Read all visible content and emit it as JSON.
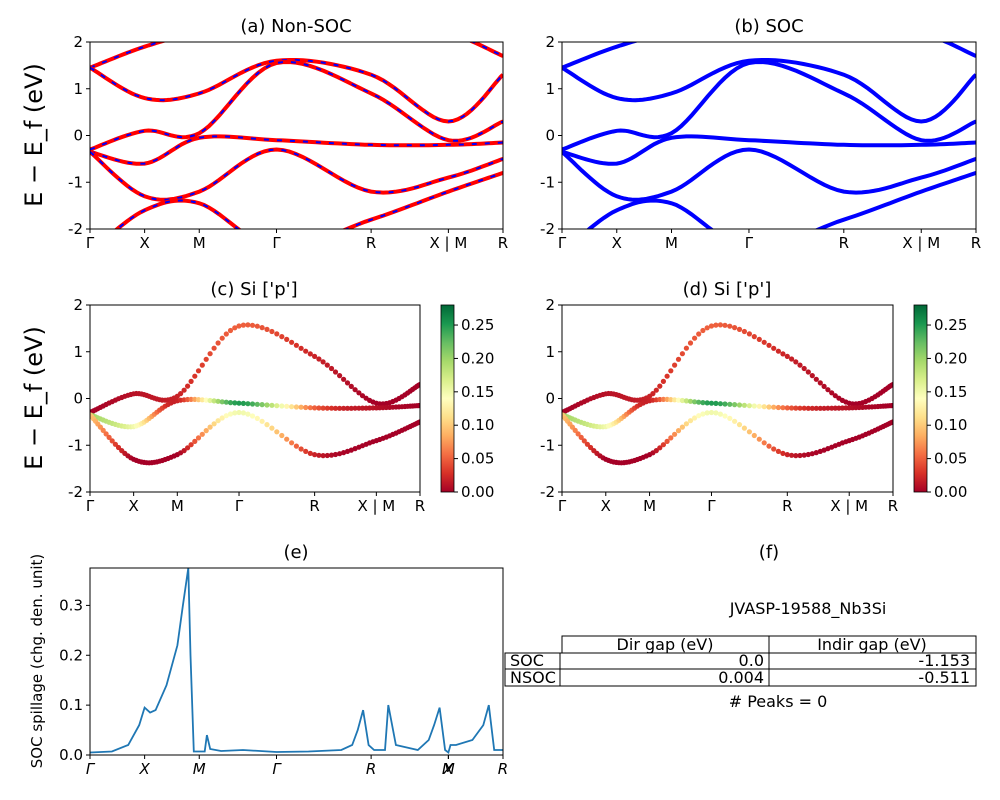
{
  "chart_data": [
    {
      "id": "a",
      "type": "line",
      "title": "(a) Non-SOC",
      "ylabel": "E − E_f (eV)",
      "ylim": [
        -2,
        2
      ],
      "yticks": [
        -2,
        -1,
        0,
        1,
        2
      ],
      "kpoint_labels": [
        "Γ",
        "X",
        "M",
        "Γ",
        "R",
        "X | M",
        "R"
      ],
      "kpoint_positions": [
        0,
        0.5,
        1.0,
        1.7071,
        2.5731,
        3.2802,
        3.7802
      ],
      "series_colors": [
        "#ff0000",
        "#0000ff"
      ],
      "bands": [
        {
          "x": [
            0,
            0.5,
            1.0,
            1.7071,
            2.5731,
            3.2802,
            3.7802
          ],
          "y": [
            1.45,
            1.9,
            2.2,
            2.4,
            2.5,
            2.2,
            1.7
          ]
        },
        {
          "x": [
            0,
            0.5,
            1.0,
            1.7071,
            2.5731,
            3.2802,
            3.7802
          ],
          "y": [
            1.45,
            0.8,
            0.9,
            1.6,
            1.3,
            0.3,
            1.3
          ]
        },
        {
          "x": [
            0,
            0.5,
            1.0,
            1.7071,
            2.5731,
            3.2802,
            3.7802
          ],
          "y": [
            -0.3,
            0.1,
            0.05,
            1.55,
            0.9,
            -0.1,
            0.3
          ]
        },
        {
          "x": [
            0,
            0.5,
            1.0,
            1.7071,
            2.5731,
            3.2802,
            3.7802
          ],
          "y": [
            -0.35,
            -0.6,
            -0.05,
            -0.1,
            -0.2,
            -0.2,
            -0.15
          ]
        },
        {
          "x": [
            0,
            0.5,
            1.0,
            1.7071,
            2.5731,
            3.2802,
            3.7802
          ],
          "y": [
            -0.35,
            -1.3,
            -1.2,
            -0.3,
            -1.2,
            -0.9,
            -0.5
          ]
        },
        {
          "x": [
            0,
            0.5,
            1.0,
            1.7071,
            2.5731,
            3.2802,
            3.7802
          ],
          "y": [
            -2.5,
            -1.6,
            -1.45,
            -2.4,
            -1.8,
            -1.2,
            -0.8
          ]
        }
      ]
    },
    {
      "id": "b",
      "type": "line",
      "title": "(b) SOC",
      "ylim": [
        -2,
        2
      ],
      "yticks": [
        -2,
        -1,
        0,
        1,
        2
      ],
      "kpoint_labels": [
        "Γ",
        "X",
        "M",
        "Γ",
        "R",
        "X | M",
        "R"
      ],
      "kpoint_positions": [
        0,
        0.5,
        1.0,
        1.7071,
        2.5731,
        3.2802,
        3.7802
      ],
      "series_colors": [
        "#0000ff"
      ],
      "bands": [
        {
          "x": [
            0,
            0.5,
            1.0,
            1.7071,
            2.5731,
            3.2802,
            3.7802
          ],
          "y": [
            1.45,
            1.9,
            2.2,
            2.4,
            2.5,
            2.2,
            1.7
          ]
        },
        {
          "x": [
            0,
            0.5,
            1.0,
            1.7071,
            2.5731,
            3.2802,
            3.7802
          ],
          "y": [
            1.45,
            0.8,
            0.9,
            1.6,
            1.3,
            0.3,
            1.3
          ]
        },
        {
          "x": [
            0,
            0.5,
            1.0,
            1.7071,
            2.5731,
            3.2802,
            3.7802
          ],
          "y": [
            -0.3,
            0.1,
            0.05,
            1.55,
            0.9,
            -0.1,
            0.3
          ]
        },
        {
          "x": [
            0,
            0.5,
            1.0,
            1.7071,
            2.5731,
            3.2802,
            3.7802
          ],
          "y": [
            -0.35,
            -0.6,
            -0.05,
            -0.1,
            -0.2,
            -0.2,
            -0.15
          ]
        },
        {
          "x": [
            0,
            0.5,
            1.0,
            1.7071,
            2.5731,
            3.2802,
            3.7802
          ],
          "y": [
            -0.35,
            -1.3,
            -1.2,
            -0.3,
            -1.2,
            -0.9,
            -0.5
          ]
        },
        {
          "x": [
            0,
            0.5,
            1.0,
            1.7071,
            2.5731,
            3.2802,
            3.7802
          ],
          "y": [
            -2.5,
            -1.6,
            -1.45,
            -2.4,
            -1.8,
            -1.2,
            -0.8
          ]
        }
      ]
    },
    {
      "id": "c",
      "type": "scatter",
      "title": "(c)  Si ['p']",
      "ylabel": "E − E_f (eV)",
      "ylim": [
        -2,
        2
      ],
      "yticks": [
        -2,
        -1,
        0,
        1,
        2
      ],
      "kpoint_labels": [
        "Γ",
        "X",
        "M",
        "Γ",
        "R",
        "X | M",
        "R"
      ],
      "kpoint_positions": [
        0,
        0.5,
        1.0,
        1.7071,
        2.5731,
        3.2802,
        3.7802
      ],
      "colorbar": {
        "min": 0.0,
        "max": 0.28,
        "ticks": [
          0.0,
          0.05,
          0.1,
          0.15,
          0.2,
          0.25
        ],
        "tick_labels": [
          "0.00",
          "0.05",
          "0.10",
          "0.15",
          "0.20",
          "0.25"
        ],
        "colormap": "RdYlGn"
      },
      "weighted_bands": [
        {
          "x": [
            0,
            0.5,
            1.0,
            1.7071,
            2.5731,
            3.2802,
            3.7802
          ],
          "y": [
            -0.3,
            0.1,
            0.05,
            1.55,
            0.9,
            -0.1,
            0.3
          ],
          "w": [
            0.0,
            0.01,
            0.02,
            0.05,
            0.02,
            0.0,
            0.0
          ]
        },
        {
          "x": [
            0,
            0.5,
            1.0,
            1.7071,
            2.5731,
            3.2802,
            3.7802
          ],
          "y": [
            -0.35,
            -0.6,
            -0.05,
            -0.1,
            -0.2,
            -0.2,
            -0.15
          ],
          "w": [
            0.2,
            0.15,
            0.02,
            0.25,
            0.05,
            0.01,
            0.0
          ]
        },
        {
          "x": [
            0,
            0.5,
            1.0,
            1.7071,
            2.5731,
            3.2802,
            3.7802
          ],
          "y": [
            -0.35,
            -1.3,
            -1.2,
            -0.3,
            -1.2,
            -0.9,
            -0.5
          ],
          "w": [
            0.1,
            0.0,
            0.0,
            0.15,
            0.02,
            0.0,
            0.0
          ]
        }
      ]
    },
    {
      "id": "d",
      "type": "scatter",
      "title": "(d) Si ['p']",
      "ylim": [
        -2,
        2
      ],
      "yticks": [
        -2,
        -1,
        0,
        1,
        2
      ],
      "kpoint_labels": [
        "Γ",
        "X",
        "M",
        "Γ",
        "R",
        "X | M",
        "R"
      ],
      "kpoint_positions": [
        0,
        0.5,
        1.0,
        1.7071,
        2.5731,
        3.2802,
        3.7802
      ],
      "colorbar": {
        "min": 0.0,
        "max": 0.28,
        "ticks": [
          0.0,
          0.05,
          0.1,
          0.15,
          0.2,
          0.25
        ],
        "tick_labels": [
          "0.00",
          "0.05",
          "0.10",
          "0.15",
          "0.20",
          "0.25"
        ],
        "colormap": "RdYlGn"
      },
      "weighted_bands": [
        {
          "x": [
            0,
            0.5,
            1.0,
            1.7071,
            2.5731,
            3.2802,
            3.7802
          ],
          "y": [
            -0.3,
            0.1,
            0.05,
            1.55,
            0.9,
            -0.1,
            0.3
          ],
          "w": [
            0.0,
            0.01,
            0.02,
            0.05,
            0.02,
            0.0,
            0.0
          ]
        },
        {
          "x": [
            0,
            0.5,
            1.0,
            1.7071,
            2.5731,
            3.2802,
            3.7802
          ],
          "y": [
            -0.35,
            -0.6,
            -0.05,
            -0.1,
            -0.2,
            -0.2,
            -0.15
          ],
          "w": [
            0.2,
            0.15,
            0.02,
            0.25,
            0.05,
            0.01,
            0.0
          ]
        },
        {
          "x": [
            0,
            0.5,
            1.0,
            1.7071,
            2.5731,
            3.2802,
            3.7802
          ],
          "y": [
            -0.35,
            -1.3,
            -1.2,
            -0.3,
            -1.2,
            -0.9,
            -0.5
          ],
          "w": [
            0.1,
            0.0,
            0.0,
            0.15,
            0.02,
            0.0,
            0.0
          ]
        }
      ]
    },
    {
      "id": "e",
      "type": "line",
      "title": "(e)",
      "ylabel": "SOC spillage (chg. den. unit)",
      "ylim": [
        0,
        0.375
      ],
      "yticks": [
        0.0,
        0.1,
        0.2,
        0.3
      ],
      "ytick_labels": [
        "0.0",
        "0.1",
        "0.2",
        "0.3"
      ],
      "kpoint_labels": [
        "Γ",
        "X",
        "M",
        "Γ",
        "R",
        "X",
        "M",
        "R"
      ],
      "kpoint_positions": [
        0,
        0.5,
        1.0,
        1.7071,
        2.5731,
        3.2802,
        3.2802,
        3.7802
      ],
      "series_color": "#1f77b4",
      "x": [
        0,
        0.2,
        0.35,
        0.45,
        0.5,
        0.55,
        0.6,
        0.7,
        0.8,
        0.85,
        0.9,
        0.92,
        0.95,
        1.0,
        1.05,
        1.07,
        1.1,
        1.2,
        1.4,
        1.7071,
        2.0,
        2.3,
        2.4,
        2.45,
        2.5,
        2.55,
        2.6,
        2.7,
        2.73,
        2.8,
        3.0,
        3.1,
        3.15,
        3.2,
        3.25,
        3.28,
        3.3,
        3.35,
        3.5,
        3.6,
        3.65,
        3.7,
        3.78
      ],
      "y": [
        0.005,
        0.007,
        0.02,
        0.06,
        0.095,
        0.085,
        0.09,
        0.14,
        0.22,
        0.3,
        0.375,
        0.2,
        0.007,
        0.007,
        0.007,
        0.04,
        0.012,
        0.008,
        0.01,
        0.006,
        0.007,
        0.01,
        0.02,
        0.05,
        0.09,
        0.02,
        0.01,
        0.01,
        0.1,
        0.02,
        0.01,
        0.03,
        0.06,
        0.095,
        0.01,
        0.005,
        0.02,
        0.02,
        0.03,
        0.06,
        0.1,
        0.01,
        0.01
      ]
    }
  ],
  "panel_f": {
    "title": "(f)",
    "material": "JVASP-19588_Nb3Si",
    "table": {
      "columns": [
        "Dir gap (eV)",
        "Indir gap (eV)"
      ],
      "rows": [
        {
          "label": "SOC",
          "dir": "0.0",
          "indir": "-1.153"
        },
        {
          "label": "NSOC",
          "dir": "0.004",
          "indir": "-0.511"
        }
      ]
    },
    "peaks": "# Peaks = 0"
  }
}
